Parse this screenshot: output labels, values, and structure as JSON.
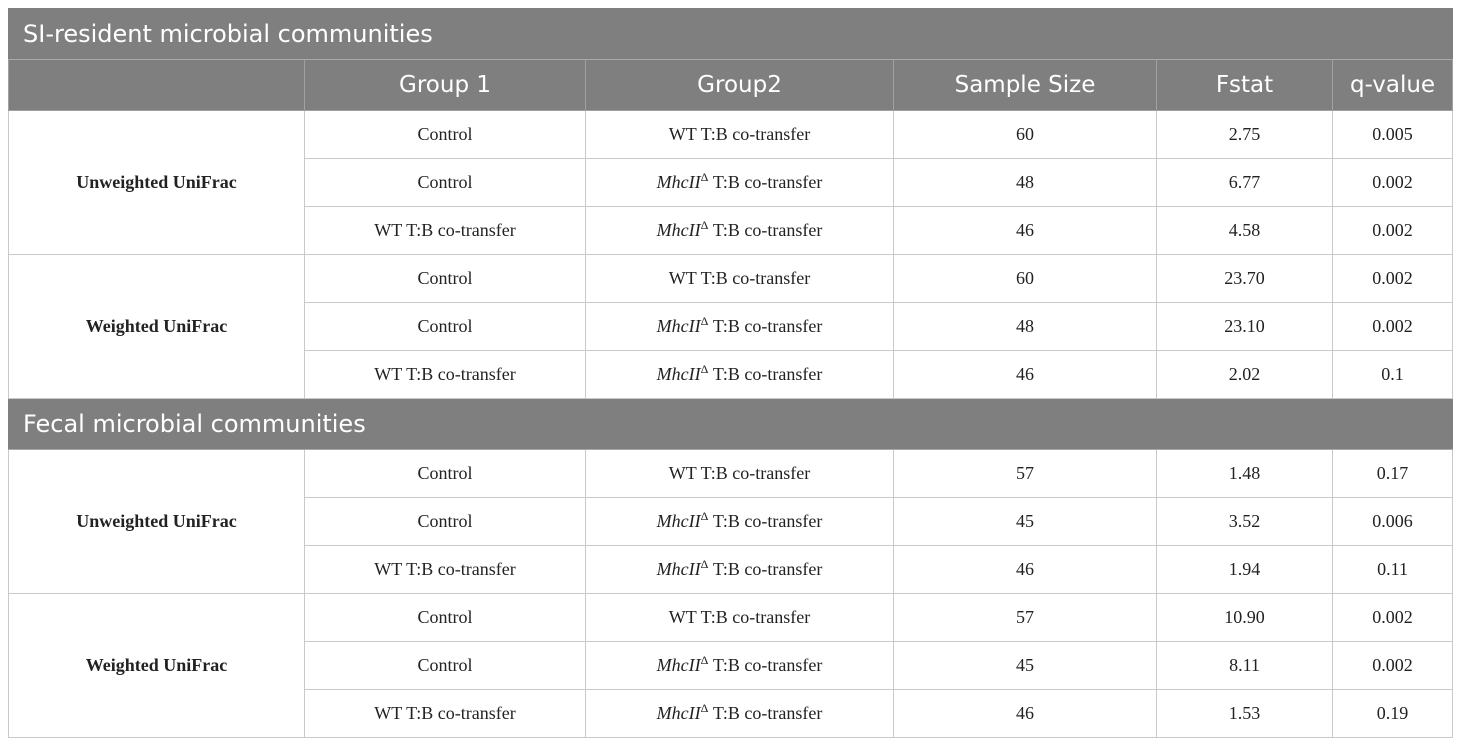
{
  "headers": [
    "Group 1",
    "Group2",
    "Sample Size",
    "Fstat",
    "q-value"
  ],
  "gene_symbol": "MhcII",
  "gene_superscript": "Δ",
  "gene_suffix": " T:B co-transfer",
  "sections": [
    {
      "title": "SI-resident microbial communities",
      "metrics": [
        {
          "name": "Unweighted UniFrac",
          "rows": [
            {
              "group1": "Control",
              "group2": "WT T:B co-transfer",
              "sample_size": "60",
              "fstat": "2.75",
              "q_value": "0.005"
            },
            {
              "group1": "Control",
              "group2": "MhcIIΔ T:B co-transfer",
              "sample_size": "48",
              "fstat": "6.77",
              "q_value": "0.002"
            },
            {
              "group1": "WT T:B co-transfer",
              "group2": "MhcIIΔ T:B co-transfer",
              "sample_size": "46",
              "fstat": "4.58",
              "q_value": "0.002"
            }
          ]
        },
        {
          "name": "Weighted UniFrac",
          "rows": [
            {
              "group1": "Control",
              "group2": "WT T:B co-transfer",
              "sample_size": "60",
              "fstat": "23.70",
              "q_value": "0.002"
            },
            {
              "group1": "Control",
              "group2": "MhcIIΔ T:B co-transfer",
              "sample_size": "48",
              "fstat": "23.10",
              "q_value": "0.002"
            },
            {
              "group1": "WT T:B co-transfer",
              "group2": "MhcIIΔ T:B co-transfer",
              "sample_size": "46",
              "fstat": "2.02",
              "q_value": "0.1"
            }
          ]
        }
      ]
    },
    {
      "title": "Fecal microbial communities",
      "metrics": [
        {
          "name": "Unweighted UniFrac",
          "rows": [
            {
              "group1": "Control",
              "group2": "WT T:B co-transfer",
              "sample_size": "57",
              "fstat": "1.48",
              "q_value": "0.17"
            },
            {
              "group1": "Control",
              "group2": "MhcIIΔ T:B co-transfer",
              "sample_size": "45",
              "fstat": "3.52",
              "q_value": "0.006"
            },
            {
              "group1": "WT T:B co-transfer",
              "group2": "MhcIIΔ T:B co-transfer",
              "sample_size": "46",
              "fstat": "1.94",
              "q_value": "0.11"
            }
          ]
        },
        {
          "name": "Weighted UniFrac",
          "rows": [
            {
              "group1": "Control",
              "group2": "WT T:B co-transfer",
              "sample_size": "57",
              "fstat": "10.90",
              "q_value": "0.002"
            },
            {
              "group1": "Control",
              "group2": "MhcIIΔ T:B co-transfer",
              "sample_size": "45",
              "fstat": "8.11",
              "q_value": "0.002"
            },
            {
              "group1": "WT T:B co-transfer",
              "group2": "MhcIIΔ T:B co-transfer",
              "sample_size": "46",
              "fstat": "1.53",
              "q_value": "0.19"
            }
          ]
        }
      ]
    }
  ]
}
